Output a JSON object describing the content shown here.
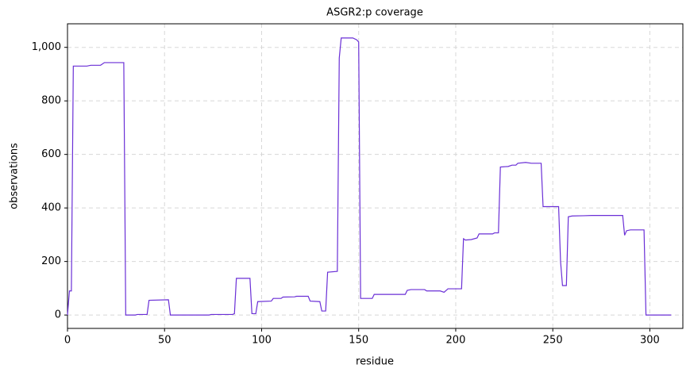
{
  "chart_data": {
    "type": "line",
    "title": "ASGR2:p coverage",
    "x_label": "residue",
    "y_label": "observations",
    "x": [
      0,
      1,
      2,
      3,
      4,
      10,
      12,
      17,
      19,
      29,
      30,
      35,
      36,
      41,
      42,
      52,
      53,
      73,
      74,
      85,
      86,
      87,
      94,
      95,
      97,
      98,
      105,
      106,
      110,
      111,
      117,
      118,
      124,
      125,
      130,
      131,
      133,
      134,
      139,
      140,
      141,
      147,
      149,
      150,
      151,
      157,
      158,
      174,
      175,
      177,
      184,
      185,
      192,
      194,
      196,
      203,
      204,
      205,
      208,
      211,
      212,
      219,
      220,
      222,
      223,
      227,
      229,
      231,
      232,
      236,
      239,
      244,
      245,
      253,
      254,
      255,
      257,
      258,
      260,
      266,
      270,
      286,
      287,
      288,
      290,
      297,
      298,
      311
    ],
    "series": [
      {
        "color": "#6a2fd6",
        "values": [
          0,
          90,
          90,
          930,
          930,
          930,
          933,
          933,
          943,
          943,
          0,
          0,
          2,
          2,
          55,
          57,
          0,
          0,
          2,
          2,
          5,
          137,
          137,
          5,
          5,
          50,
          52,
          62,
          62,
          67,
          68,
          70,
          70,
          52,
          50,
          15,
          15,
          160,
          163,
          960,
          1035,
          1035,
          1028,
          1020,
          62,
          62,
          77,
          77,
          92,
          95,
          95,
          90,
          90,
          85,
          98,
          98,
          285,
          280,
          282,
          288,
          303,
          303,
          307,
          307,
          553,
          555,
          560,
          560,
          567,
          570,
          567,
          567,
          405,
          405,
          200,
          110,
          110,
          367,
          370,
          371,
          372,
          372,
          298,
          315,
          318,
          318,
          0,
          0
        ]
      }
    ],
    "xlim": [
      0,
      317
    ],
    "ylim": [
      -50,
      1088
    ],
    "xticks": [
      0,
      50,
      100,
      150,
      200,
      250,
      300
    ],
    "yticks": [
      0,
      200,
      400,
      600,
      800,
      {
        "value": 1000,
        "label": "1,000"
      }
    ],
    "grid": true
  }
}
